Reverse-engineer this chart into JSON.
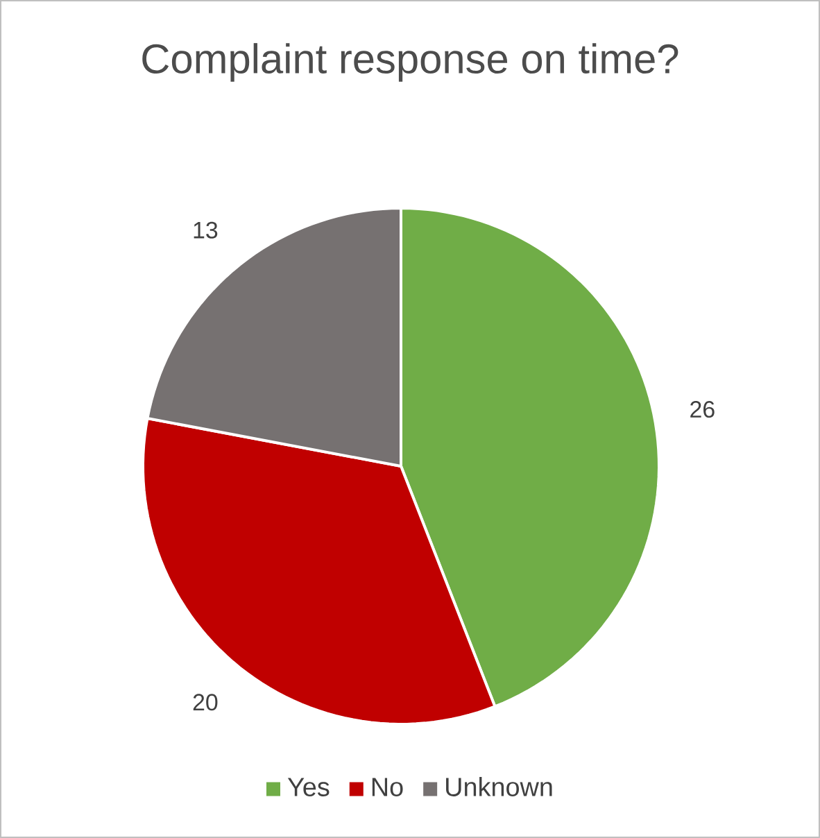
{
  "chart_data": {
    "type": "pie",
    "title": "Complaint response on time?",
    "categories": [
      "Yes",
      "No",
      "Unknown"
    ],
    "values": [
      26,
      20,
      13
    ],
    "colors": [
      "#70ad47",
      "#c00000",
      "#767171"
    ],
    "data_labels": true,
    "legend": "bottom"
  }
}
